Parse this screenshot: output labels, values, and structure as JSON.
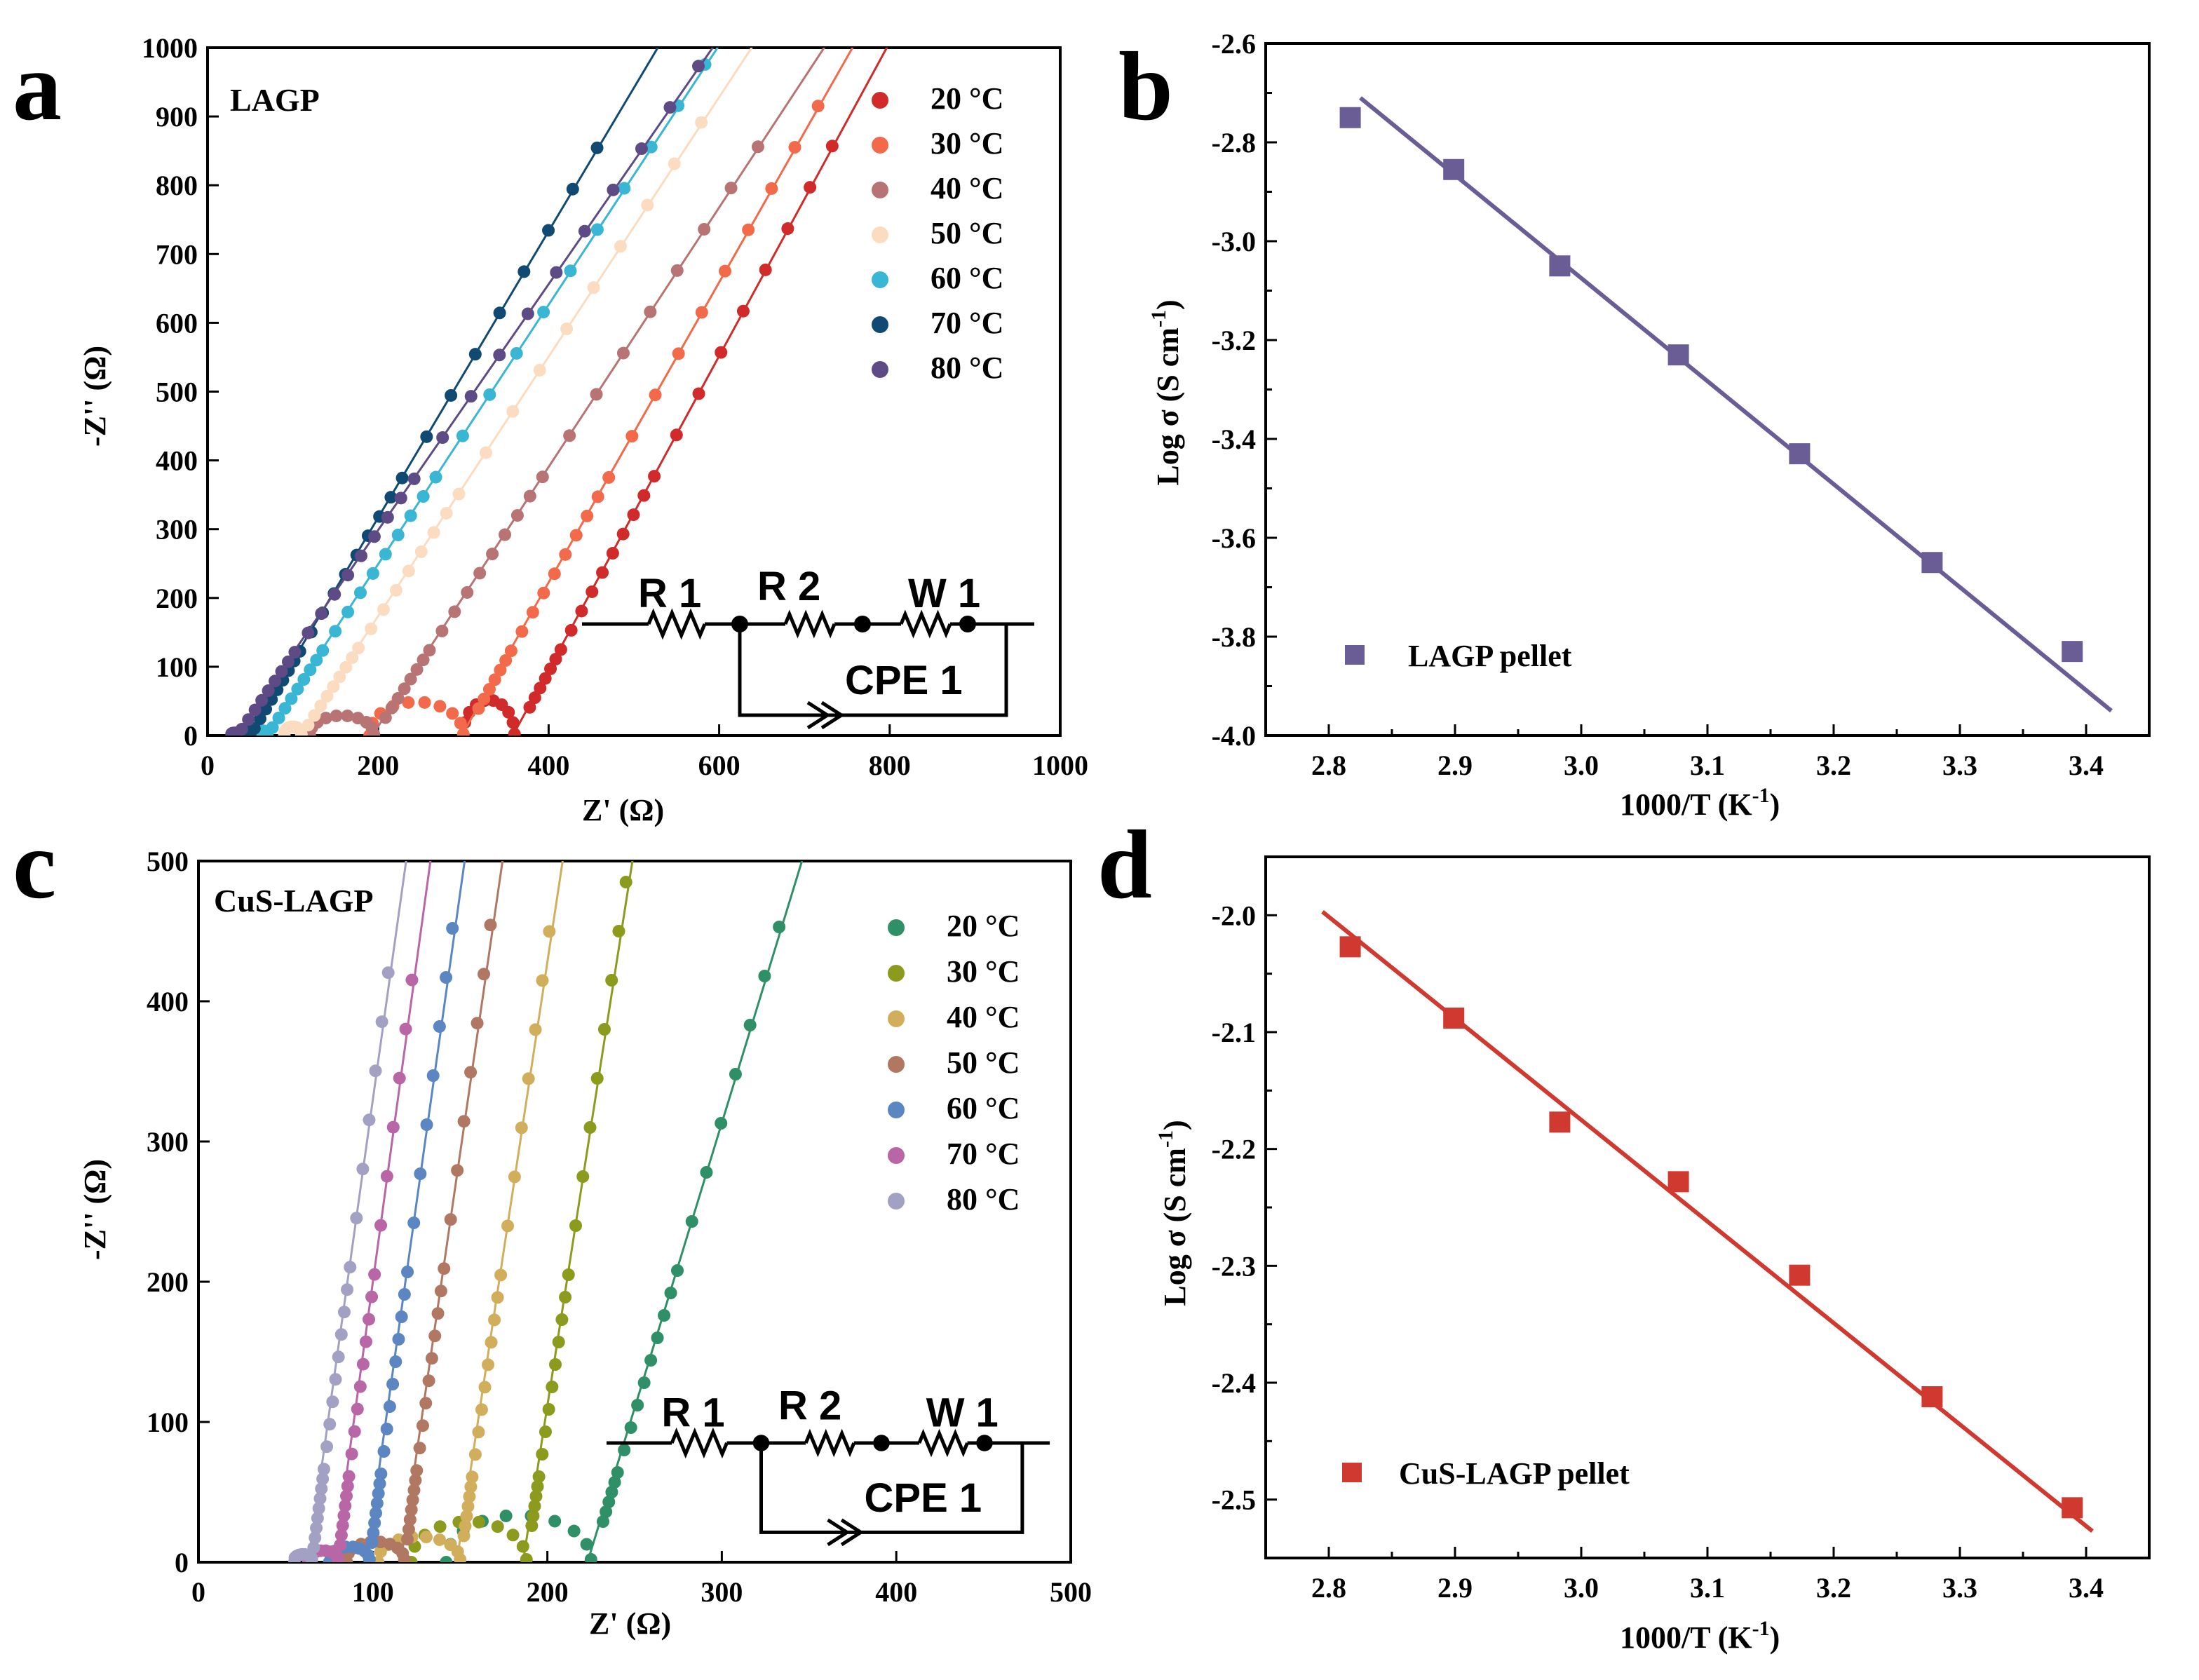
{
  "panels": {
    "a": {
      "letter": "a",
      "sample": "LAGP",
      "legend_title_unit": "°C"
    },
    "b": {
      "letter": "b",
      "legend": "LAGP pellet"
    },
    "c": {
      "letter": "c",
      "sample": "CuS-LAGP"
    },
    "d": {
      "letter": "d",
      "legend": "CuS-LAGP pellet"
    }
  },
  "colors": {
    "a_series": [
      "#d02a2a",
      "#f26a4a",
      "#b87474",
      "#fcdcc0",
      "#39b6d4",
      "#104a72",
      "#5e4b86"
    ],
    "c_series": [
      "#2f8f66",
      "#8c9a1e",
      "#d1ae5c",
      "#b07862",
      "#5b86c2",
      "#b966a6",
      "#a2a0c3"
    ],
    "b_line": "#6a5c95",
    "d_line": "#d0392f"
  },
  "circuit": {
    "r1": "R 1",
    "r2": "R 2",
    "w1": "W 1",
    "cpe": "CPE 1"
  },
  "chart_data": [
    {
      "panel": "a",
      "type": "scatter",
      "xlabel": "Z'  (Ω)",
      "ylabel": "-Z''  (Ω)",
      "xlim": [
        0,
        1000
      ],
      "ylim": [
        0,
        1000
      ],
      "xticks": [
        0,
        200,
        400,
        600,
        800,
        1000
      ],
      "yticks": [
        0,
        100,
        200,
        300,
        400,
        500,
        600,
        700,
        800,
        900,
        1000
      ],
      "series": [
        {
          "name": "20 °C",
          "r0": 300,
          "rb": 360,
          "arc": 55,
          "slope": 2.3,
          "ymax": 875
        },
        {
          "name": "30 °C",
          "r0": 190,
          "rb": 300,
          "arc": 52,
          "slope": 2.2,
          "ymax": 925
        },
        {
          "name": "40 °C",
          "r0": 120,
          "rb": 195,
          "arc": 30,
          "slope": 1.9,
          "ymax": 885
        },
        {
          "name": "50 °C",
          "r0": 90,
          "rb": 110,
          "arc": 12,
          "slope": 1.9,
          "ymax": 925
        },
        {
          "name": "60 °C",
          "r0": 55,
          "rb": 70,
          "arc": 6,
          "slope": 1.9,
          "ymax": 1005
        },
        {
          "name": "70 °C",
          "r0": 40,
          "rb": 50,
          "arc": 4,
          "slope": 2.1,
          "ymax": 910
        },
        {
          "name": "80 °C",
          "r0": 28,
          "rb": 35,
          "arc": 2,
          "slope": 1.8,
          "ymax": 995
        }
      ]
    },
    {
      "panel": "b",
      "type": "scatter",
      "xlabel": "1000/T (K",
      "xlabel_sup": "-1",
      "xlabel_end": ")",
      "ylabel": "Log σ (S cm",
      "ylabel_sup": "-1",
      "ylabel_end": ")",
      "xlim": [
        2.75,
        3.45
      ],
      "ylim": [
        -4.0,
        -2.6
      ],
      "xticks": [
        2.8,
        2.9,
        3.0,
        3.1,
        3.2,
        3.3,
        3.4
      ],
      "xticklabels": [
        "2.8",
        "2.9",
        "3.0",
        "3.1",
        "3.2",
        "3.3",
        "3.4"
      ],
      "yticks": [
        -4.0,
        -3.8,
        -3.6,
        -3.4,
        -3.2,
        -3.0,
        -2.8,
        -2.6
      ],
      "yticklabels": [
        "-4.0",
        "-3.8",
        "-3.6",
        "-3.4",
        "-3.2",
        "-3.0",
        "-2.8",
        "-2.6"
      ],
      "x": [
        2.817,
        2.899,
        2.983,
        3.077,
        3.173,
        3.278,
        3.389
      ],
      "y": [
        -2.75,
        -2.855,
        -3.05,
        -3.23,
        -3.43,
        -3.65,
        -3.83
      ],
      "fit": {
        "x": [
          2.825,
          3.42
        ],
        "y": [
          -2.71,
          -3.95
        ]
      }
    },
    {
      "panel": "c",
      "type": "scatter",
      "xlabel": "Z'  (Ω)",
      "ylabel": "-Z''  (Ω)",
      "xlim": [
        0,
        500
      ],
      "ylim": [
        0,
        500
      ],
      "xticks": [
        0,
        100,
        200,
        300,
        400,
        500
      ],
      "yticks": [
        0,
        100,
        200,
        300,
        400,
        500
      ],
      "series": [
        {
          "name": "20 °C",
          "r0": 142,
          "rb": 225,
          "arc": 35,
          "slope": 4.2,
          "ymax": 470
        },
        {
          "name": "30 °C",
          "r0": 122,
          "rb": 188,
          "arc": 30,
          "slope": 8.5,
          "ymax": 490
        },
        {
          "name": "40 °C",
          "r0": 103,
          "rb": 150,
          "arc": 18,
          "slope": 8.8,
          "ymax": 475
        },
        {
          "name": "50 °C",
          "r0": 85,
          "rb": 118,
          "arc": 14,
          "slope": 9.2,
          "ymax": 458
        },
        {
          "name": "60 °C",
          "r0": 75,
          "rb": 98,
          "arc": 10,
          "slope": 9.5,
          "ymax": 455
        },
        {
          "name": "70 °C",
          "r0": 63,
          "rb": 80,
          "arc": 7,
          "slope": 9.8,
          "ymax": 440
        },
        {
          "name": "80 °C",
          "r0": 55,
          "rb": 65,
          "arc": 4,
          "slope": 9.6,
          "ymax": 428
        }
      ]
    },
    {
      "panel": "d",
      "type": "scatter",
      "xlabel": "1000/T (K",
      "xlabel_sup": "-1",
      "xlabel_end": ")",
      "ylabel": "Log σ (S cm",
      "ylabel_sup": "-1",
      "ylabel_end": ")",
      "xlim": [
        2.75,
        3.45
      ],
      "ylim": [
        -2.55,
        -1.95
      ],
      "xticks": [
        2.8,
        2.9,
        3.0,
        3.1,
        3.2,
        3.3,
        3.4
      ],
      "xticklabels": [
        "2.8",
        "2.9",
        "3.0",
        "3.1",
        "3.2",
        "3.3",
        "3.4"
      ],
      "yticks": [
        -2.5,
        -2.4,
        -2.3,
        -2.2,
        -2.1,
        -2.0
      ],
      "yticklabels": [
        "-2.5",
        "-2.4",
        "-2.3",
        "-2.2",
        "-2.1",
        "-2.0"
      ],
      "x": [
        2.817,
        2.899,
        2.983,
        3.077,
        3.173,
        3.278,
        3.389
      ],
      "y": [
        -2.027,
        -2.088,
        -2.177,
        -2.228,
        -2.308,
        -2.412,
        -2.507
      ],
      "fit": {
        "x": [
          2.795,
          3.405
        ],
        "y": [
          -1.997,
          -2.527
        ]
      }
    }
  ]
}
